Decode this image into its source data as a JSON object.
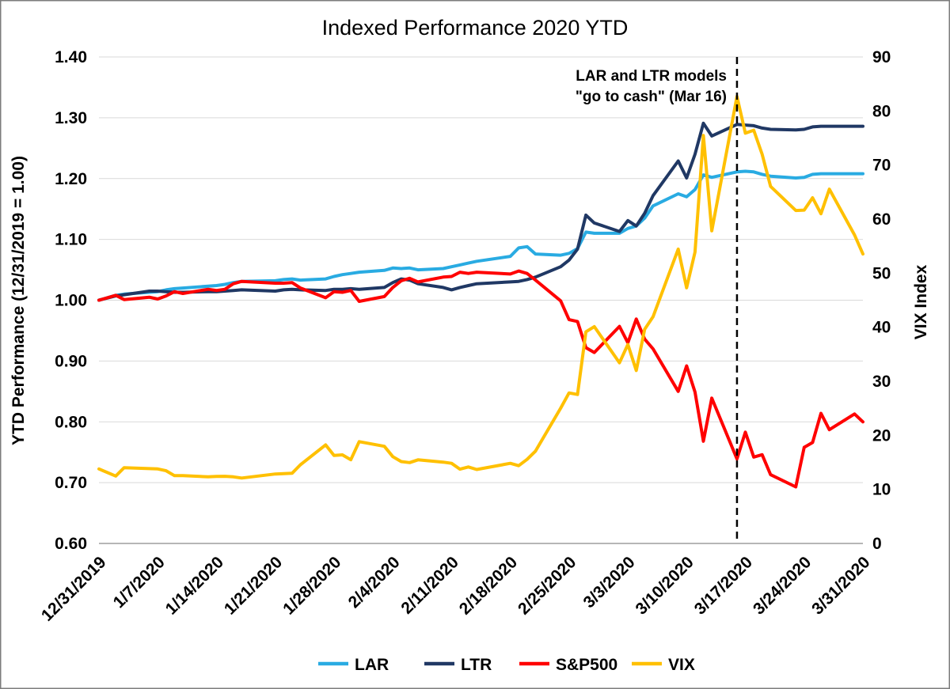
{
  "chart": {
    "title": "Indexed Performance 2020 YTD",
    "left_axis": {
      "title": "YTD Performance (12/31/2019 = 1.00)",
      "ticks": [
        "0.60",
        "0.70",
        "0.80",
        "0.90",
        "1.00",
        "1.10",
        "1.20",
        "1.30",
        "1.40"
      ]
    },
    "right_axis": {
      "title": "VIX Index",
      "ticks": [
        "0",
        "10",
        "20",
        "30",
        "40",
        "50",
        "60",
        "70",
        "80",
        "90"
      ]
    },
    "x_axis": {
      "tick_labels": [
        "12/31/2019",
        "1/7/2020",
        "1/14/2020",
        "1/21/2020",
        "1/28/2020",
        "2/4/2020",
        "2/11/2020",
        "2/18/2020",
        "2/25/2020",
        "3/3/2020",
        "3/10/2020",
        "3/17/2020",
        "3/24/2020",
        "3/31/2020"
      ]
    },
    "annotation": {
      "line1": "LAR and LTR models",
      "line2": "\"go to cash\" (Mar 16)"
    },
    "colors": {
      "lar": "#29ABE2",
      "ltr": "#203864",
      "sp500": "#FF0000",
      "vix": "#FFC000",
      "gridline": "#D9D9D9",
      "axis_line": "#9E9E9E",
      "event_line": "#000000"
    }
  },
  "chart_data": {
    "type": "line",
    "title": "Indexed Performance 2020 YTD",
    "xlabel": "",
    "ylabel_left": "YTD Performance (12/31/2019 = 1.00)",
    "ylabel_right": "VIX Index",
    "left_ylim": [
      0.6,
      1.4
    ],
    "right_ylim": [
      0,
      90
    ],
    "grid": true,
    "legend_position": "bottom",
    "event_line": {
      "date": "3/16/2020",
      "style": "dashed",
      "color": "#000000",
      "label": "LAR and LTR models \"go to cash\" (Mar 16)"
    },
    "x": [
      "12/31/2019",
      "1/2/2020",
      "1/3/2020",
      "1/6/2020",
      "1/7/2020",
      "1/8/2020",
      "1/9/2020",
      "1/10/2020",
      "1/13/2020",
      "1/14/2020",
      "1/15/2020",
      "1/16/2020",
      "1/17/2020",
      "1/21/2020",
      "1/22/2020",
      "1/23/2020",
      "1/24/2020",
      "1/27/2020",
      "1/28/2020",
      "1/29/2020",
      "1/30/2020",
      "1/31/2020",
      "2/3/2020",
      "2/4/2020",
      "2/5/2020",
      "2/6/2020",
      "2/7/2020",
      "2/10/2020",
      "2/11/2020",
      "2/12/2020",
      "2/13/2020",
      "2/14/2020",
      "2/18/2020",
      "2/19/2020",
      "2/20/2020",
      "2/21/2020",
      "2/24/2020",
      "2/25/2020",
      "2/26/2020",
      "2/27/2020",
      "2/28/2020",
      "3/2/2020",
      "3/3/2020",
      "3/4/2020",
      "3/5/2020",
      "3/6/2020",
      "3/9/2020",
      "3/10/2020",
      "3/11/2020",
      "3/12/2020",
      "3/13/2020",
      "3/16/2020",
      "3/17/2020",
      "3/18/2020",
      "3/19/2020",
      "3/20/2020",
      "3/23/2020",
      "3/24/2020",
      "3/25/2020",
      "3/26/2020",
      "3/27/2020",
      "3/30/2020",
      "3/31/2020"
    ],
    "series": [
      {
        "name": "LAR",
        "axis": "left",
        "color": "#29ABE2",
        "values": [
          1.0,
          1.008,
          1.01,
          1.013,
          1.014,
          1.017,
          1.019,
          1.02,
          1.023,
          1.024,
          1.026,
          1.029,
          1.031,
          1.032,
          1.034,
          1.035,
          1.033,
          1.035,
          1.039,
          1.042,
          1.044,
          1.046,
          1.049,
          1.053,
          1.052,
          1.053,
          1.05,
          1.052,
          1.055,
          1.058,
          1.061,
          1.064,
          1.072,
          1.086,
          1.088,
          1.076,
          1.074,
          1.077,
          1.085,
          1.112,
          1.11,
          1.11,
          1.118,
          1.122,
          1.135,
          1.155,
          1.175,
          1.17,
          1.182,
          1.206,
          1.202,
          1.211,
          1.212,
          1.211,
          1.207,
          1.204,
          1.201,
          1.202,
          1.207,
          1.208,
          1.208,
          1.208,
          1.208
        ]
      },
      {
        "name": "LTR",
        "axis": "left",
        "color": "#203864",
        "values": [
          1.0,
          1.007,
          1.009,
          1.015,
          1.015,
          1.014,
          1.013,
          1.013,
          1.014,
          1.014,
          1.015,
          1.016,
          1.017,
          1.015,
          1.017,
          1.018,
          1.017,
          1.016,
          1.018,
          1.018,
          1.019,
          1.018,
          1.021,
          1.029,
          1.035,
          1.033,
          1.027,
          1.021,
          1.017,
          1.021,
          1.024,
          1.027,
          1.03,
          1.031,
          1.034,
          1.038,
          1.055,
          1.066,
          1.084,
          1.14,
          1.127,
          1.113,
          1.131,
          1.122,
          1.143,
          1.172,
          1.229,
          1.201,
          1.24,
          1.291,
          1.27,
          1.289,
          1.288,
          1.287,
          1.283,
          1.281,
          1.28,
          1.281,
          1.285,
          1.286,
          1.286,
          1.286,
          1.286
        ]
      },
      {
        "name": "S&P500",
        "axis": "left",
        "color": "#FF0000",
        "values": [
          1.0,
          1.008,
          1.001,
          1.005,
          1.002,
          1.007,
          1.014,
          1.011,
          1.018,
          1.016,
          1.018,
          1.027,
          1.031,
          1.028,
          1.028,
          1.029,
          1.02,
          1.004,
          1.014,
          1.013,
          1.016,
          0.998,
          1.006,
          1.021,
          1.032,
          1.036,
          1.03,
          1.038,
          1.039,
          1.046,
          1.044,
          1.046,
          1.043,
          1.048,
          1.044,
          1.033,
          0.999,
          0.968,
          0.965,
          0.922,
          0.914,
          0.957,
          0.93,
          0.969,
          0.936,
          0.92,
          0.85,
          0.892,
          0.849,
          0.768,
          0.839,
          0.739,
          0.783,
          0.742,
          0.746,
          0.713,
          0.693,
          0.758,
          0.766,
          0.814,
          0.787,
          0.813,
          0.8
        ]
      },
      {
        "name": "VIX",
        "axis": "right",
        "color": "#FFC000",
        "values": [
          13.78,
          12.47,
          14.02,
          13.85,
          13.79,
          13.45,
          12.54,
          12.56,
          12.32,
          12.39,
          12.42,
          12.32,
          12.1,
          12.85,
          12.91,
          12.98,
          14.56,
          18.23,
          16.28,
          16.39,
          15.49,
          18.84,
          17.97,
          16.05,
          15.15,
          14.96,
          15.47,
          15.04,
          14.83,
          13.74,
          14.15,
          13.68,
          14.83,
          14.38,
          15.56,
          17.08,
          25.03,
          27.85,
          27.56,
          39.16,
          40.11,
          33.42,
          36.82,
          31.99,
          39.62,
          41.94,
          54.46,
          47.3,
          53.9,
          75.47,
          57.83,
          82.69,
          75.91,
          76.45,
          72.0,
          66.04,
          61.59,
          61.67,
          63.95,
          61.0,
          65.54,
          57.08,
          53.54
        ]
      }
    ]
  }
}
